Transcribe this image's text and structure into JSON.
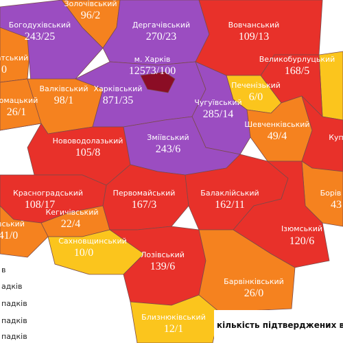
{
  "districts": [
    {
      "name": "Золочівський",
      "value": "96/2"
    },
    {
      "name": "Богодухівський",
      "value": "243/25"
    },
    {
      "name": "Дергачівський",
      "value": "270/23"
    },
    {
      "name": "Вовчанський",
      "value": "109/13"
    },
    {
      "name": "м. Харків",
      "value": "12573/100"
    },
    {
      "name": "Великобурлуцький",
      "value": "168/5"
    },
    {
      "name": "атський",
      "value": "0"
    },
    {
      "name": "Валківський",
      "value": "98/1"
    },
    {
      "name": "Харківський",
      "value": "871/35"
    },
    {
      "name": "Печенізький",
      "value": "6/0"
    },
    {
      "name": "омацький",
      "value": "26/1"
    },
    {
      "name": "Чугуївський",
      "value": "285/14"
    },
    {
      "name": "Шевченківський",
      "value": "49/4"
    },
    {
      "name": "Куп",
      "value": null
    },
    {
      "name": "Нововодолазький",
      "value": "105/8"
    },
    {
      "name": "Зміївський",
      "value": "243/6"
    },
    {
      "name": "Красноградський",
      "value": "108/17"
    },
    {
      "name": "Первомайський",
      "value": "167/3"
    },
    {
      "name": "Балаклійський",
      "value": "162/11"
    },
    {
      "name": "Борів",
      "value": "43"
    },
    {
      "name": "Кегичівський",
      "value": "22/4"
    },
    {
      "name": "вський",
      "value": "41/0"
    },
    {
      "name": "Ізюмський",
      "value": "120/6"
    },
    {
      "name": "Сахновщинський",
      "value": "10/0"
    },
    {
      "name": "Лозівський",
      "value": "139/6"
    },
    {
      "name": "Барвінківський",
      "value": "26/0"
    },
    {
      "name": "Близнюківський",
      "value": "12/1"
    }
  ],
  "legend": {
    "items": [
      "в",
      "адків",
      "падків",
      "падків",
      "падків"
    ],
    "caption": "кількість підтверджених в"
  }
}
